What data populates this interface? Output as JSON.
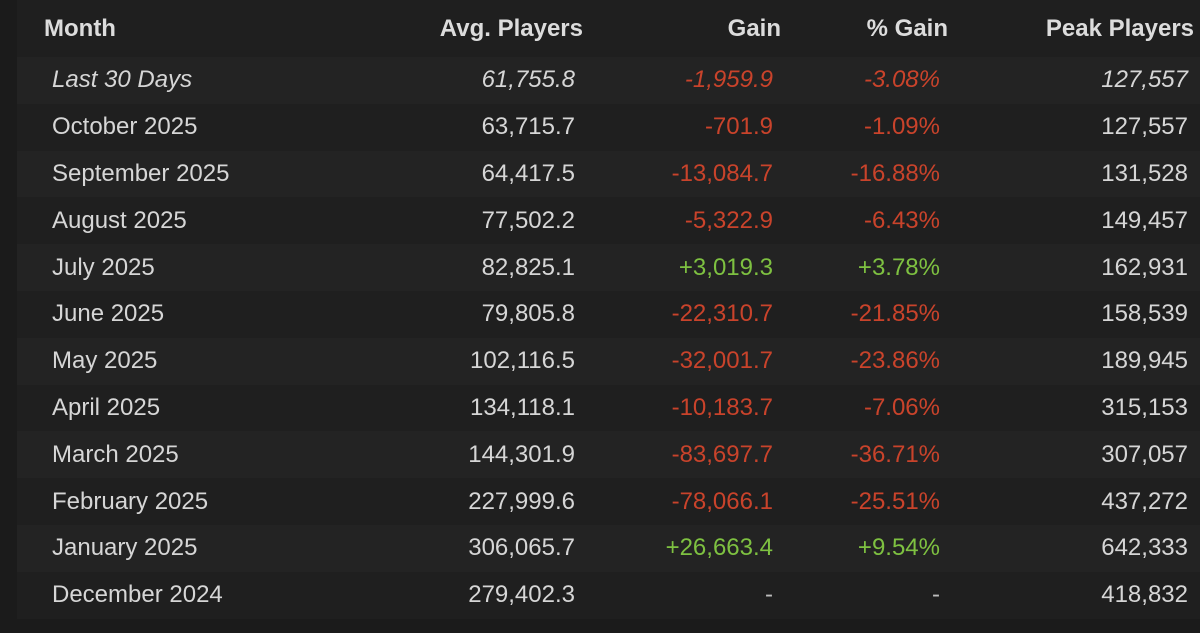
{
  "headers": {
    "month": "Month",
    "avg_players": "Avg. Players",
    "gain": "Gain",
    "pct_gain": "% Gain",
    "peak_players": "Peak Players"
  },
  "colors": {
    "negative": "#c9432b",
    "positive": "#7ec141",
    "text": "#d6d6d6",
    "background": "#1f1f1f"
  },
  "rows": [
    {
      "month": "Last 30 Days",
      "avg": "61,755.8",
      "gain": "-1,959.9",
      "pct": "-3.08%",
      "peak": "127,557",
      "trend": "neg",
      "italic": true
    },
    {
      "month": "October 2025",
      "avg": "63,715.7",
      "gain": "-701.9",
      "pct": "-1.09%",
      "peak": "127,557",
      "trend": "neg"
    },
    {
      "month": "September 2025",
      "avg": "64,417.5",
      "gain": "-13,084.7",
      "pct": "-16.88%",
      "peak": "131,528",
      "trend": "neg"
    },
    {
      "month": "August 2025",
      "avg": "77,502.2",
      "gain": "-5,322.9",
      "pct": "-6.43%",
      "peak": "149,457",
      "trend": "neg"
    },
    {
      "month": "July 2025",
      "avg": "82,825.1",
      "gain": "+3,019.3",
      "pct": "+3.78%",
      "peak": "162,931",
      "trend": "pos"
    },
    {
      "month": "June 2025",
      "avg": "79,805.8",
      "gain": "-22,310.7",
      "pct": "-21.85%",
      "peak": "158,539",
      "trend": "neg"
    },
    {
      "month": "May 2025",
      "avg": "102,116.5",
      "gain": "-32,001.7",
      "pct": "-23.86%",
      "peak": "189,945",
      "trend": "neg"
    },
    {
      "month": "April 2025",
      "avg": "134,118.1",
      "gain": "-10,183.7",
      "pct": "-7.06%",
      "peak": "315,153",
      "trend": "neg"
    },
    {
      "month": "March 2025",
      "avg": "144,301.9",
      "gain": "-83,697.7",
      "pct": "-36.71%",
      "peak": "307,057",
      "trend": "neg"
    },
    {
      "month": "February 2025",
      "avg": "227,999.6",
      "gain": "-78,066.1",
      "pct": "-25.51%",
      "peak": "437,272",
      "trend": "neg"
    },
    {
      "month": "January 2025",
      "avg": "306,065.7",
      "gain": "+26,663.4",
      "pct": "+9.54%",
      "peak": "642,333",
      "trend": "pos"
    },
    {
      "month": "December 2024",
      "avg": "279,402.3",
      "gain": "-",
      "pct": "-",
      "peak": "418,832",
      "trend": "neutral"
    }
  ]
}
